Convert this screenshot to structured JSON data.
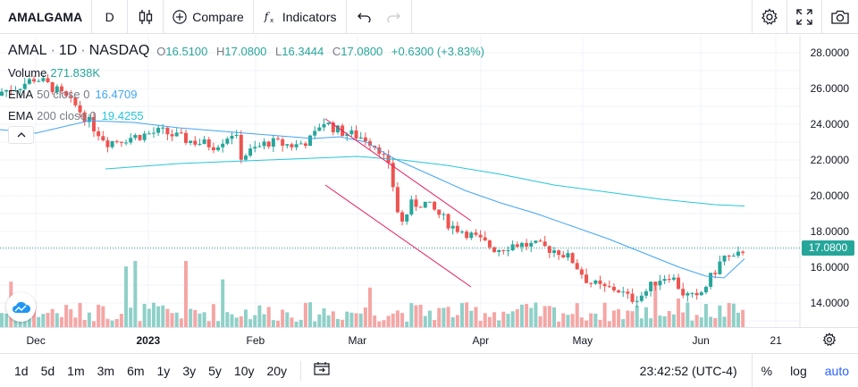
{
  "toolbar": {
    "symbol": "AMALGAMA",
    "interval": "D",
    "compare_label": "Compare",
    "indicators_label": "Indicators"
  },
  "legend": {
    "symbol": "AMAL",
    "interval": "1D",
    "exchange": "NASDAQ",
    "open_label": "O",
    "open": "16.5100",
    "high_label": "H",
    "high": "17.0800",
    "low_label": "L",
    "low": "16.3444",
    "close_label": "C",
    "close": "17.0800",
    "change": "+0.6300 (+3.83%)",
    "volume_name": "Volume",
    "volume_value": "271.838K",
    "ema50_name": "EMA",
    "ema50_params": "50 close 0",
    "ema50_value": "16.4709",
    "ema200_name": "EMA",
    "ema200_params": "200 close 0",
    "ema200_value": "19.4255"
  },
  "colors": {
    "up": "#26a69a",
    "down": "#ef5350",
    "up_volume": "#8fd0c8",
    "down_volume": "#f5a6a5",
    "ema50": "#42a5f5",
    "ema200": "#26c6da",
    "trendline": "#e91e63",
    "accent": "#2962ff"
  },
  "price_scale": [
    "28.0000",
    "26.0000",
    "24.0000",
    "22.0000",
    "20.0000",
    "18.0000",
    "16.0000",
    "14.0000"
  ],
  "last_price": "17.0800",
  "time_axis": [
    {
      "label": "Dec",
      "bold": false
    },
    {
      "label": "2023",
      "bold": true
    },
    {
      "label": "Feb",
      "bold": false
    },
    {
      "label": "Mar",
      "bold": false
    },
    {
      "label": "Apr",
      "bold": false
    },
    {
      "label": "May",
      "bold": false
    },
    {
      "label": "Jun",
      "bold": false
    },
    {
      "label": "21",
      "bold": false
    }
  ],
  "ranges": [
    "1d",
    "5d",
    "1m",
    "3m",
    "6m",
    "1y",
    "3y",
    "5y",
    "10y",
    "20y"
  ],
  "bottom": {
    "time": "23:42:52 (UTC-4)",
    "percent": "%",
    "log": "log",
    "auto": "auto"
  },
  "chart_data": {
    "type": "candlestick",
    "price_range": [
      13,
      28.5
    ],
    "ema50_points": [
      [
        0,
        23.7
      ],
      [
        40,
        23.5
      ],
      [
        100,
        24.2
      ],
      [
        150,
        24.1
      ],
      [
        200,
        23.8
      ],
      [
        250,
        23.6
      ],
      [
        300,
        23.4
      ],
      [
        350,
        23.2
      ],
      [
        380,
        23.3
      ],
      [
        410,
        23.0
      ],
      [
        440,
        22.1
      ],
      [
        480,
        21.2
      ],
      [
        520,
        20.3
      ],
      [
        560,
        19.6
      ],
      [
        600,
        19.0
      ],
      [
        640,
        18.3
      ],
      [
        680,
        17.6
      ],
      [
        720,
        16.8
      ],
      [
        760,
        16.0
      ],
      [
        790,
        15.5
      ],
      [
        810,
        15.4
      ],
      [
        833,
        16.4709
      ]
    ],
    "ema200_points": [
      [
        118,
        21.5
      ],
      [
        200,
        21.8
      ],
      [
        300,
        22.0
      ],
      [
        400,
        22.2
      ],
      [
        450,
        22.0
      ],
      [
        500,
        21.7
      ],
      [
        560,
        21.2
      ],
      [
        620,
        20.6
      ],
      [
        680,
        20.2
      ],
      [
        740,
        19.8
      ],
      [
        800,
        19.5
      ],
      [
        833,
        19.4255
      ]
    ],
    "trendlines": [
      {
        "from": [
          364,
          24.3
        ],
        "to": [
          527,
          18.6
        ]
      },
      {
        "from": [
          364,
          20.6
        ],
        "to": [
          527,
          14.9
        ]
      }
    ]
  }
}
